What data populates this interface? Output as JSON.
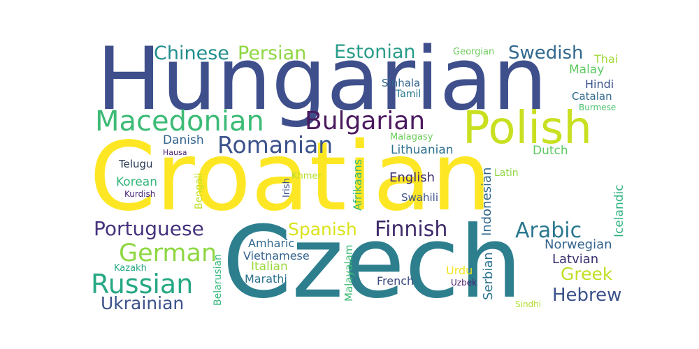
{
  "words": [
    {
      "text": "Hungarian",
      "color": "#3f4f8c"
    },
    {
      "text": "Croatian",
      "color": "#fde725"
    },
    {
      "text": "Czech",
      "color": "#2d7f8e"
    },
    {
      "text": "Polish",
      "color": "#c8e020"
    },
    {
      "text": "Macedonian",
      "color": "#3cbb75"
    },
    {
      "text": "Bulgarian",
      "color": "#4b1a5f"
    },
    {
      "text": "Romanian",
      "color": "#3b528b"
    },
    {
      "text": "Chinese",
      "color": "#218f8d"
    },
    {
      "text": "Persian",
      "color": "#8fd744"
    },
    {
      "text": "Estonian",
      "color": "#2a9d8a"
    },
    {
      "text": "Swedish",
      "color": "#31688e"
    },
    {
      "text": "Georgian",
      "color": "#6ccd5a"
    },
    {
      "text": "Thai",
      "color": "#a0da39"
    },
    {
      "text": "Malay",
      "color": "#5ec962"
    },
    {
      "text": "Hindi",
      "color": "#3b528b"
    },
    {
      "text": "Sinhala",
      "color": "#33648d"
    },
    {
      "text": "Tamil",
      "color": "#2a788e"
    },
    {
      "text": "Catalan",
      "color": "#31688e"
    },
    {
      "text": "Burmese",
      "color": "#4ac16d"
    },
    {
      "text": "Danish",
      "color": "#33638d"
    },
    {
      "text": "Hausa",
      "color": "#481f70"
    },
    {
      "text": "Malagasy",
      "color": "#6ccd5a"
    },
    {
      "text": "Lithuanian",
      "color": "#2d708e"
    },
    {
      "text": "Dutch",
      "color": "#5ec962"
    },
    {
      "text": "Telugu",
      "color": "#25374f"
    },
    {
      "text": "Korean",
      "color": "#34b679"
    },
    {
      "text": "Kurdish",
      "color": "#482878"
    },
    {
      "text": "Bengali",
      "color": "#bddf26"
    },
    {
      "text": "Irish",
      "color": "#3b528b"
    },
    {
      "text": "Khmer",
      "color": "#b5de2b"
    },
    {
      "text": "Afrikaans",
      "color": "#35b779"
    },
    {
      "text": "English",
      "color": "#3e2a6a"
    },
    {
      "text": "Indonesian",
      "color": "#31688e"
    },
    {
      "text": "Latin",
      "color": "#8fd744"
    },
    {
      "text": "Icelandic",
      "color": "#2db27d"
    },
    {
      "text": "Swahili",
      "color": "#3b528b"
    },
    {
      "text": "Portuguese",
      "color": "#46327e"
    },
    {
      "text": "Spanish",
      "color": "#dae319"
    },
    {
      "text": "Finnish",
      "color": "#3e2a6a"
    },
    {
      "text": "Arabic",
      "color": "#2a788e"
    },
    {
      "text": "German",
      "color": "#8fd744"
    },
    {
      "text": "Amharic",
      "color": "#31688e"
    },
    {
      "text": "Vietnamese",
      "color": "#33638d"
    },
    {
      "text": "Italian",
      "color": "#9bd93c"
    },
    {
      "text": "Marathi",
      "color": "#2c728e"
    },
    {
      "text": "Malayalam",
      "color": "#3cbb75"
    },
    {
      "text": "Serbian",
      "color": "#2c728e"
    },
    {
      "text": "Norwegian",
      "color": "#33638d"
    },
    {
      "text": "Latvian",
      "color": "#3b2f6e"
    },
    {
      "text": "Greek",
      "color": "#c0df25"
    },
    {
      "text": "Hebrew",
      "color": "#3b528b"
    },
    {
      "text": "Russian",
      "color": "#26a884"
    },
    {
      "text": "Ukrainian",
      "color": "#3b528b"
    },
    {
      "text": "Kazakh",
      "color": "#26a884"
    },
    {
      "text": "Belarusian",
      "color": "#35b779"
    },
    {
      "text": "Urdu",
      "color": "#f1e51d"
    },
    {
      "text": "Uzbek",
      "color": "#48186a"
    },
    {
      "text": "French",
      "color": "#3b4a7e"
    },
    {
      "text": "Sindhi",
      "color": "#b0dd2f"
    }
  ]
}
